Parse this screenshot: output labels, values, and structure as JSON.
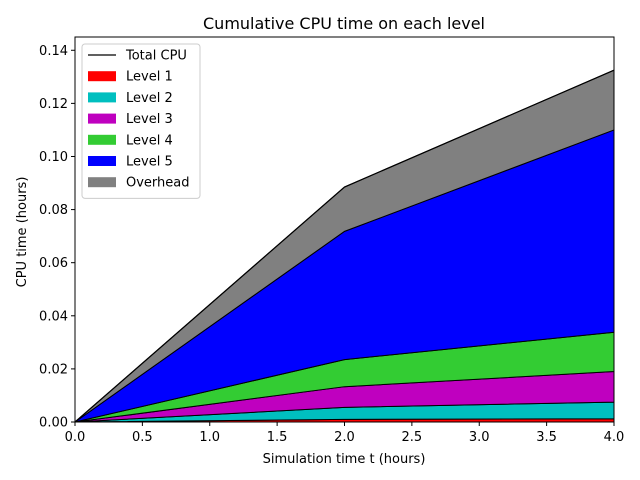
{
  "chart_data": {
    "type": "area",
    "title": "Cumulative CPU time on each level",
    "xlabel": "Simulation time t (hours)",
    "ylabel": "CPU time (hours)",
    "xlim": [
      0.0,
      4.0
    ],
    "ylim": [
      0.0,
      0.145
    ],
    "xticks": [
      "0.0",
      "0.5",
      "1.0",
      "1.5",
      "2.0",
      "2.5",
      "3.0",
      "3.5",
      "4.0"
    ],
    "yticks": [
      "0.00",
      "0.02",
      "0.04",
      "0.06",
      "0.08",
      "0.10",
      "0.12",
      "0.14"
    ],
    "x": [
      0.0,
      2.0,
      4.0
    ],
    "stacked": true,
    "legend_position": "top-left",
    "total": {
      "name": "Total CPU",
      "color": "#000000",
      "values": [
        0.0,
        0.0885,
        0.1325
      ]
    },
    "series": [
      {
        "name": "Level 1",
        "color": "#ff0000",
        "values": [
          0.0,
          0.001,
          0.0012
        ]
      },
      {
        "name": "Level 2",
        "color": "#00bfbf",
        "values": [
          0.0,
          0.0045,
          0.0063
        ]
      },
      {
        "name": "Level 3",
        "color": "#bf00bf",
        "values": [
          0.0,
          0.0078,
          0.0115
        ]
      },
      {
        "name": "Level 4",
        "color": "#33cc33",
        "values": [
          0.0,
          0.0102,
          0.0148
        ]
      },
      {
        "name": "Level 5",
        "color": "#0000ff",
        "values": [
          0.0,
          0.0483,
          0.0762
        ]
      },
      {
        "name": "Overhead",
        "color": "#808080",
        "values": [
          0.0,
          0.0167,
          0.0225
        ]
      }
    ]
  }
}
